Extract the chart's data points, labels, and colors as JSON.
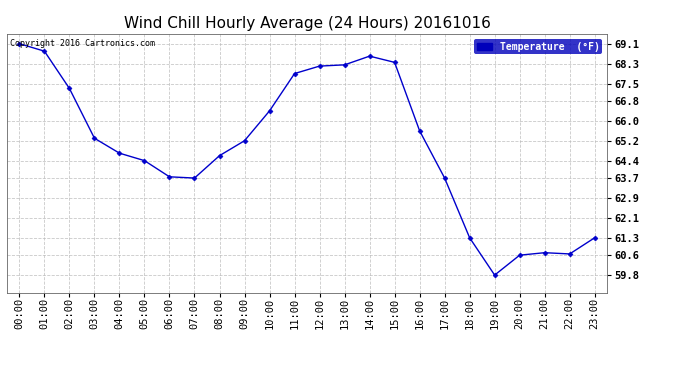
{
  "title": "Wind Chill Hourly Average (24 Hours) 20161016",
  "copyright": "Copyright 2016 Cartronics.com",
  "legend_label": "Temperature  (°F)",
  "x_labels": [
    "00:00",
    "01:00",
    "02:00",
    "03:00",
    "04:00",
    "05:00",
    "06:00",
    "07:00",
    "08:00",
    "09:00",
    "10:00",
    "11:00",
    "12:00",
    "13:00",
    "14:00",
    "15:00",
    "16:00",
    "17:00",
    "18:00",
    "19:00",
    "20:00",
    "21:00",
    "22:00",
    "23:00"
  ],
  "y_values": [
    69.1,
    68.8,
    67.3,
    65.3,
    64.7,
    64.4,
    63.75,
    63.7,
    64.6,
    65.2,
    66.4,
    67.9,
    68.2,
    68.25,
    68.6,
    68.35,
    65.6,
    63.7,
    61.3,
    59.8,
    60.6,
    60.7,
    60.65,
    61.3
  ],
  "ylim_min": 59.1,
  "ylim_max": 69.5,
  "yticks": [
    59.8,
    60.6,
    61.3,
    62.1,
    62.9,
    63.7,
    64.4,
    65.2,
    66.0,
    66.8,
    67.5,
    68.3,
    69.1
  ],
  "line_color": "#0000cc",
  "marker": "D",
  "marker_size": 2.5,
  "bg_color": "#ffffff",
  "plot_bg_color": "#ffffff",
  "grid_color": "#bbbbbb",
  "title_fontsize": 11,
  "tick_fontsize": 7.5,
  "legend_bg": "#0000bb",
  "legend_text_color": "#ffffff"
}
